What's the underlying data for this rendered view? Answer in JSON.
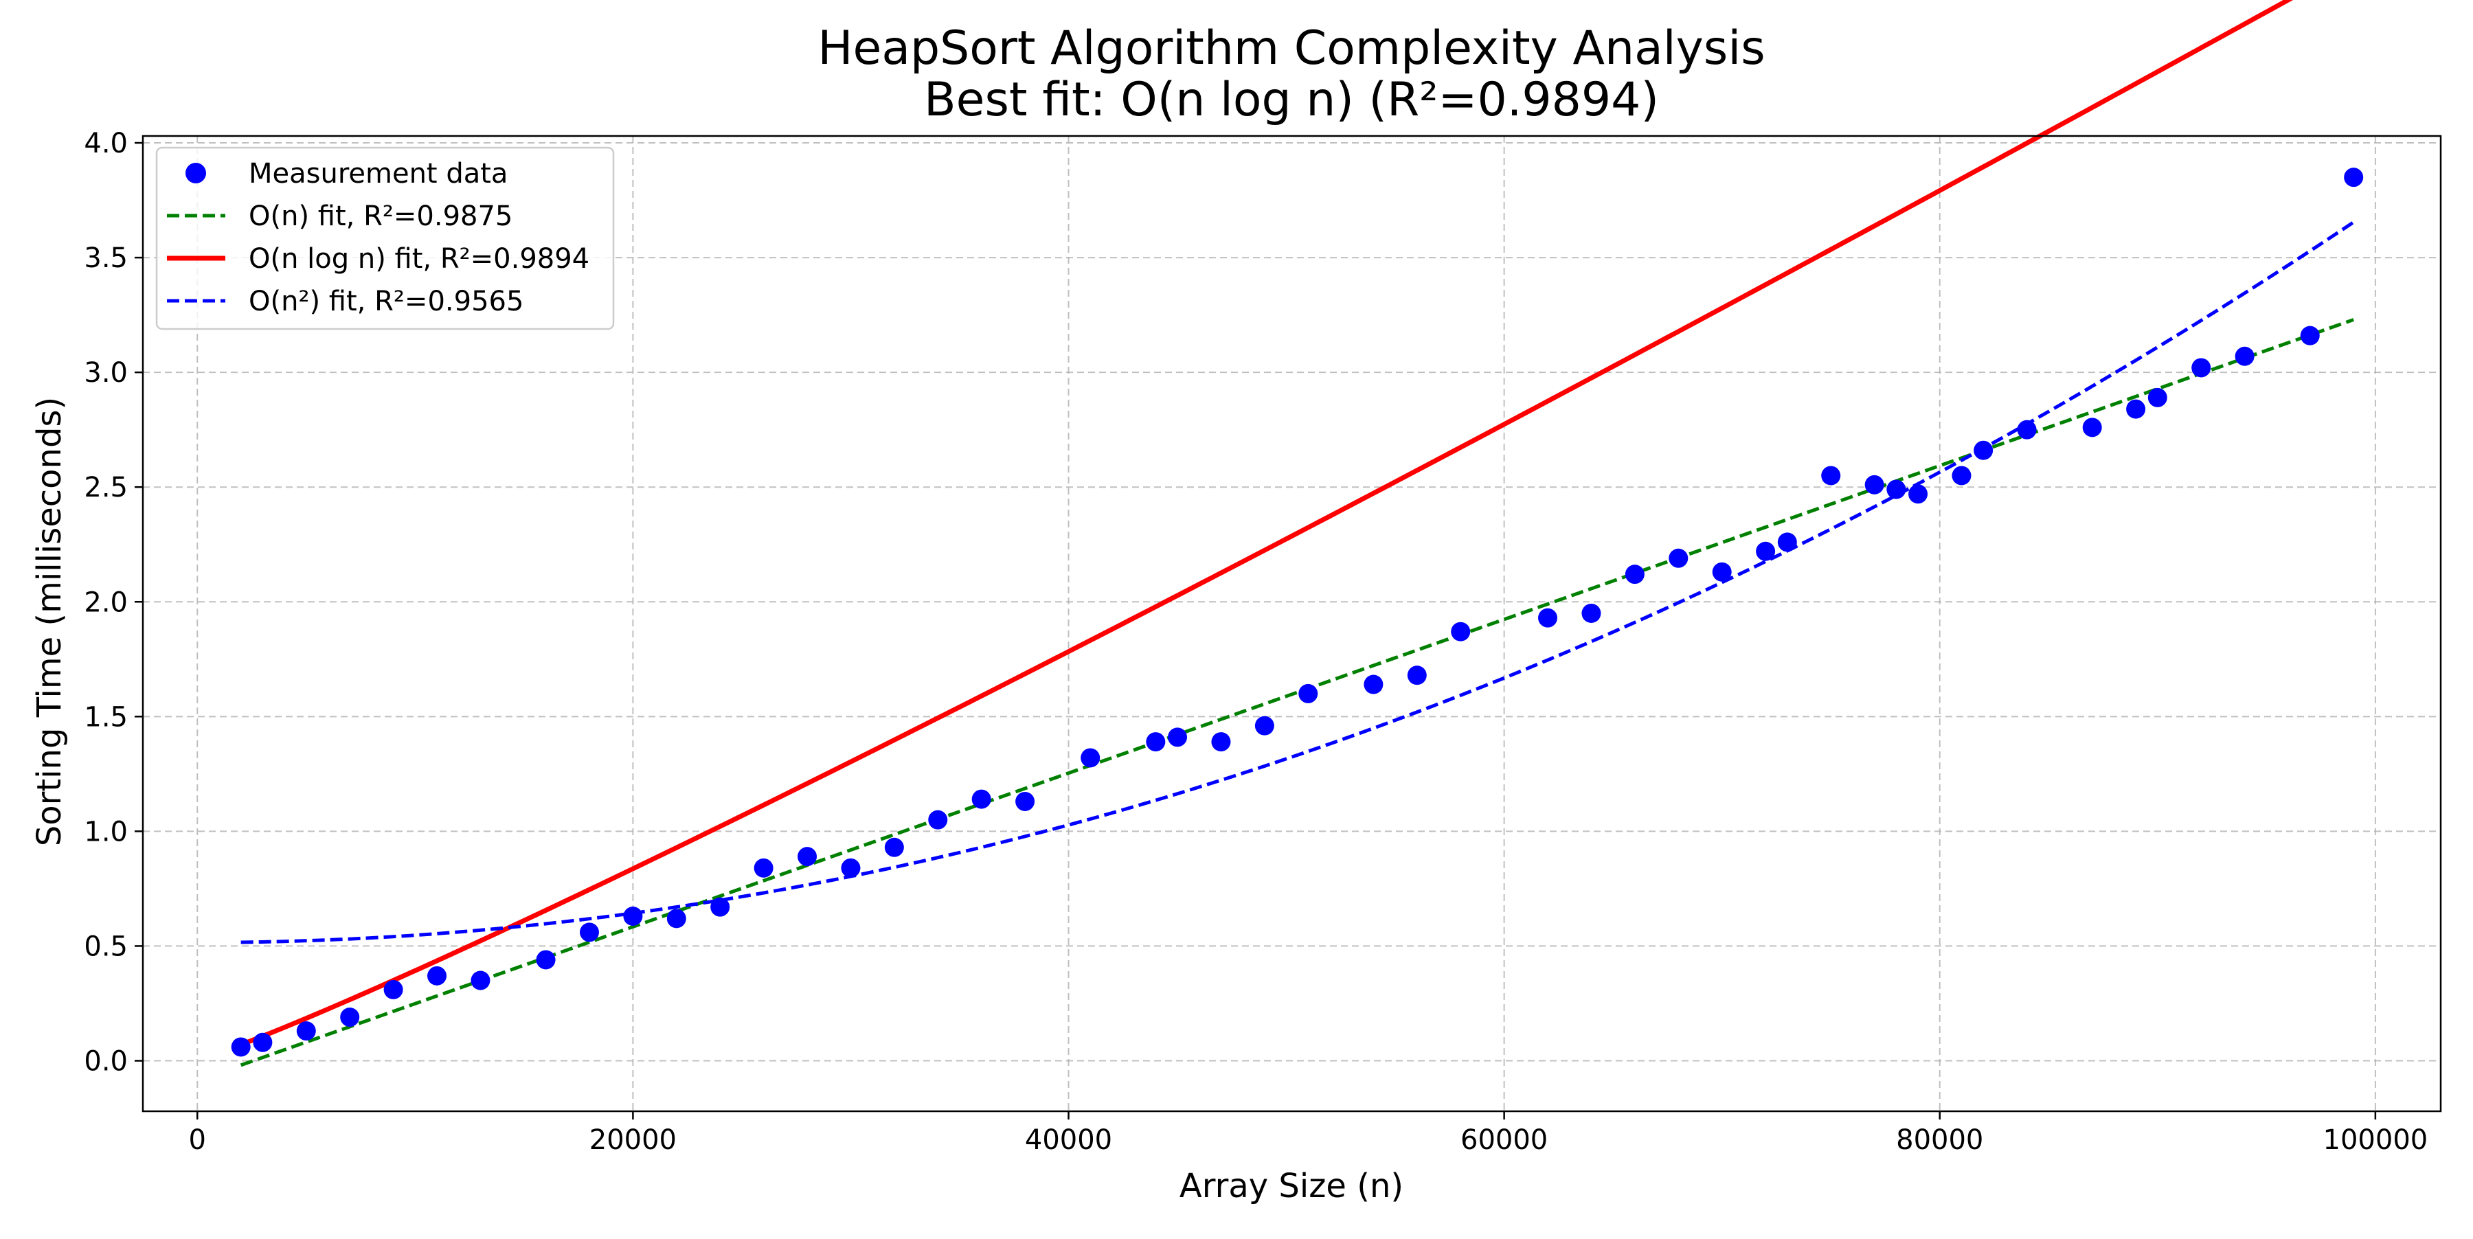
{
  "chart_data": {
    "type": "scatter",
    "title": "HeapSort Algorithm Complexity Analysis",
    "subtitle": "Best fit: O(n log n) (R²=0.9894)",
    "xlabel": "Array Size (n)",
    "ylabel": "Sorting Time (milliseconds)",
    "xlim": [
      -2500,
      103000
    ],
    "ylim": [
      -0.22,
      4.03
    ],
    "x_ticks": [
      0,
      20000,
      40000,
      60000,
      80000,
      100000
    ],
    "x_tick_labels": [
      "0",
      "20000",
      "40000",
      "60000",
      "80000",
      "100000"
    ],
    "y_ticks": [
      0.0,
      0.5,
      1.0,
      1.5,
      2.0,
      2.5,
      3.0,
      3.5,
      4.0
    ],
    "y_tick_labels": [
      "0.0",
      "0.5",
      "1.0",
      "1.5",
      "2.0",
      "2.5",
      "3.0",
      "3.5",
      "4.0"
    ],
    "grid": true,
    "legend_position": "top-left",
    "series": [
      {
        "name": "Measurement data",
        "kind": "scatter",
        "color": "#0000ff",
        "points": [
          [
            2000,
            0.06
          ],
          [
            3000,
            0.08
          ],
          [
            5000,
            0.13
          ],
          [
            7000,
            0.19
          ],
          [
            9000,
            0.31
          ],
          [
            11000,
            0.37
          ],
          [
            13000,
            0.35
          ],
          [
            16000,
            0.44
          ],
          [
            18000,
            0.56
          ],
          [
            20000,
            0.63
          ],
          [
            22000,
            0.62
          ],
          [
            24000,
            0.67
          ],
          [
            26000,
            0.84
          ],
          [
            28000,
            0.89
          ],
          [
            30000,
            0.84
          ],
          [
            32000,
            0.93
          ],
          [
            34000,
            1.05
          ],
          [
            36000,
            1.14
          ],
          [
            38000,
            1.13
          ],
          [
            41000,
            1.32
          ],
          [
            44000,
            1.39
          ],
          [
            45000,
            1.41
          ],
          [
            47000,
            1.39
          ],
          [
            49000,
            1.46
          ],
          [
            51000,
            1.6
          ],
          [
            54000,
            1.64
          ],
          [
            56000,
            1.68
          ],
          [
            58000,
            1.87
          ],
          [
            62000,
            1.93
          ],
          [
            64000,
            1.95
          ],
          [
            66000,
            2.12
          ],
          [
            68000,
            2.19
          ],
          [
            70000,
            2.13
          ],
          [
            72000,
            2.22
          ],
          [
            73000,
            2.26
          ],
          [
            75000,
            2.55
          ],
          [
            77000,
            2.51
          ],
          [
            78000,
            2.49
          ],
          [
            79000,
            2.47
          ],
          [
            81000,
            2.55
          ],
          [
            82000,
            2.66
          ],
          [
            84000,
            2.75
          ],
          [
            87000,
            2.76
          ],
          [
            89000,
            2.84
          ],
          [
            90000,
            2.89
          ],
          [
            92000,
            3.02
          ],
          [
            94000,
            3.07
          ],
          [
            97000,
            3.16
          ],
          [
            99000,
            3.85
          ]
        ]
      },
      {
        "name": "O(n) fit, R²=0.9875",
        "kind": "line",
        "dash": "dashed",
        "color": "#008000",
        "model": "linear",
        "x_range": [
          2000,
          99000
        ],
        "a": 3.3491e-05,
        "b": -0.086
      },
      {
        "name": "O(n log n) fit, R²=0.9894",
        "kind": "line",
        "dash": "solid",
        "color": "#ff0000",
        "model": "nlogn",
        "x_range": [
          2000,
          99000
        ],
        "a": 2.9054e-06,
        "b": 0.0066
      },
      {
        "name": "O(n²) fit, R²=0.9565",
        "kind": "line",
        "dash": "dashed",
        "color": "#0000ff",
        "model": "quadratic",
        "x_range": [
          2000,
          99000
        ],
        "a": 3.2031e-10,
        "b": 0.5151
      }
    ]
  }
}
